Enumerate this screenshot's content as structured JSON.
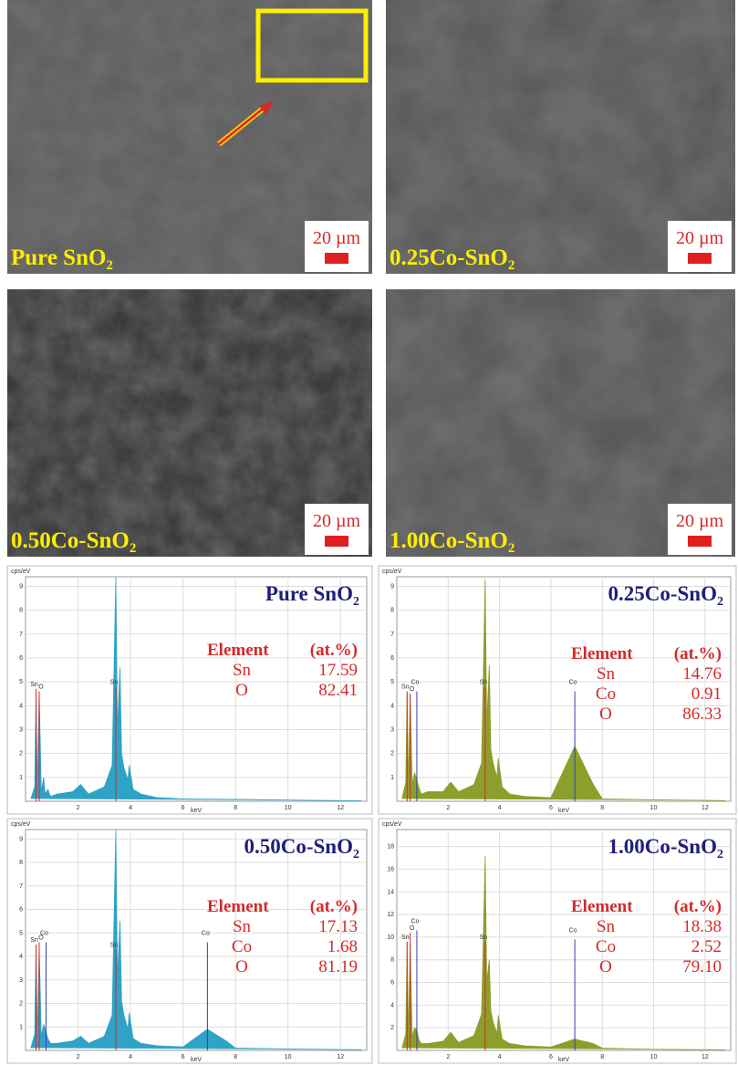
{
  "sem_panels": [
    {
      "label": "Pure SnO",
      "label_sub": "2",
      "scale_bar": "20 µm"
    },
    {
      "label": "0.25Co-SnO",
      "label_sub": "2",
      "scale_bar": "20 µm"
    },
    {
      "label": "0.50Co-SnO",
      "label_sub": "2",
      "scale_bar": "20 µm"
    },
    {
      "label": "1.00Co-SnO",
      "label_sub": "2",
      "scale_bar": "20 µm"
    }
  ],
  "eds_panels": [
    {
      "type": "area",
      "title": "Pure SnO",
      "title_sub": "2",
      "y_unit": "cps/eV",
      "x_unit": "keV",
      "color": "#2fa3c6",
      "xlim": [
        0,
        13
      ],
      "ylim": [
        0,
        9.4
      ],
      "xticks": [
        2,
        4,
        6,
        8,
        10,
        12
      ],
      "yticks": [
        1,
        2,
        3,
        4,
        5,
        6,
        7,
        8,
        9
      ],
      "x": [
        0.2,
        0.35,
        0.4,
        0.45,
        0.52,
        0.6,
        0.69,
        0.75,
        0.85,
        0.95,
        1.2,
        1.8,
        2.1,
        2.4,
        3.0,
        3.3,
        3.44,
        3.5,
        3.6,
        3.66,
        3.75,
        3.9,
        3.95,
        4.1,
        4.4,
        5,
        6,
        8,
        10,
        12.8
      ],
      "y": [
        0.1,
        0.6,
        4.7,
        0.5,
        4.6,
        0.4,
        1.0,
        0.3,
        0.5,
        0.2,
        0.3,
        0.4,
        0.7,
        0.3,
        0.6,
        1.5,
        9.4,
        3.0,
        5.6,
        2.0,
        1.4,
        0.9,
        1.5,
        0.5,
        0.3,
        0.15,
        0.1,
        0.08,
        0.05,
        0.02
      ],
      "peaks": [
        {
          "text": "Sn",
          "energy": 0.4,
          "height": 4.7,
          "color": "#d42a2a"
        },
        {
          "text": "O",
          "energy": 0.52,
          "height": 4.6,
          "color": "#d42a2a"
        },
        {
          "text": "Sn",
          "energy": 3.44,
          "height": 4.8,
          "color": "#d42a2a"
        }
      ],
      "table": {
        "header": [
          "Element",
          "(at.%)"
        ],
        "rows": [
          [
            "Sn",
            "17.59"
          ],
          [
            "O",
            "82.41"
          ]
        ]
      }
    },
    {
      "type": "area",
      "title": "0.25Co-SnO",
      "title_sub": "2",
      "y_unit": "cps/eV",
      "x_unit": "keV",
      "color": "#8aa02a",
      "xlim": [
        0,
        13
      ],
      "ylim": [
        0,
        9.4
      ],
      "xticks": [
        2,
        4,
        6,
        8,
        10,
        12
      ],
      "yticks": [
        1,
        2,
        3,
        4,
        5,
        6,
        7,
        8,
        9
      ],
      "x": [
        0.2,
        0.35,
        0.4,
        0.45,
        0.52,
        0.6,
        0.69,
        0.78,
        0.85,
        0.95,
        1.2,
        1.8,
        2.1,
        2.4,
        3.0,
        3.3,
        3.44,
        3.5,
        3.6,
        3.66,
        3.75,
        3.9,
        3.95,
        4.1,
        4.4,
        5,
        6,
        6.93,
        7.65,
        8,
        10,
        12.8
      ],
      "y": [
        0.1,
        0.8,
        4.6,
        0.6,
        4.5,
        0.7,
        1.2,
        0.9,
        0.6,
        0.3,
        0.4,
        0.4,
        0.8,
        0.4,
        0.7,
        1.6,
        9.3,
        3.2,
        5.7,
        2.2,
        1.6,
        1.0,
        1.8,
        0.6,
        0.3,
        0.2,
        0.15,
        2.3,
        0.7,
        0.1,
        0.06,
        0.03
      ],
      "peaks": [
        {
          "text": "Sn",
          "energy": 0.4,
          "height": 4.6,
          "color": "#d42a2a"
        },
        {
          "text": "O",
          "energy": 0.52,
          "height": 4.5,
          "color": "#d42a2a"
        },
        {
          "text": "Co",
          "energy": 0.78,
          "height": 4.6,
          "color": "#3040b0"
        },
        {
          "text": "Sn",
          "energy": 3.44,
          "height": 4.8,
          "color": "#d42a2a"
        },
        {
          "text": "Co",
          "energy": 6.93,
          "height": 4.6,
          "color": "#3040b0"
        }
      ],
      "table": {
        "header": [
          "Element",
          "(at.%)"
        ],
        "rows": [
          [
            "Sn",
            "14.76"
          ],
          [
            "Co",
            "0.91"
          ],
          [
            "O",
            "86.33"
          ]
        ]
      }
    },
    {
      "type": "area",
      "title": "0.50Co-SnO",
      "title_sub": "2",
      "y_unit": "cps/eV",
      "x_unit": "keV",
      "color": "#2fa3c6",
      "xlim": [
        0,
        13
      ],
      "ylim": [
        0,
        9.4
      ],
      "xticks": [
        2,
        4,
        6,
        8,
        10,
        12
      ],
      "yticks": [
        1,
        2,
        3,
        4,
        5,
        6,
        7,
        8,
        9
      ],
      "x": [
        0.2,
        0.35,
        0.4,
        0.45,
        0.52,
        0.6,
        0.69,
        0.78,
        0.85,
        0.95,
        1.2,
        1.8,
        2.1,
        2.4,
        3.0,
        3.3,
        3.44,
        3.5,
        3.6,
        3.66,
        3.75,
        3.9,
        3.95,
        4.1,
        4.4,
        5,
        6,
        6.93,
        7.65,
        8,
        10,
        12.8
      ],
      "y": [
        0.1,
        0.7,
        4.5,
        0.5,
        4.4,
        0.6,
        1.1,
        0.8,
        0.5,
        0.3,
        0.3,
        0.4,
        0.6,
        0.3,
        0.6,
        1.5,
        9.4,
        3.1,
        5.5,
        2.1,
        1.5,
        0.9,
        1.6,
        0.5,
        0.3,
        0.2,
        0.15,
        0.9,
        0.4,
        0.1,
        0.06,
        0.03
      ],
      "peaks": [
        {
          "text": "Sn",
          "energy": 0.4,
          "height": 4.5,
          "color": "#d42a2a"
        },
        {
          "text": "O",
          "energy": 0.52,
          "height": 4.6,
          "color": "#d42a2a"
        },
        {
          "text": "Co",
          "energy": 0.78,
          "height": 4.6,
          "color": "#3040b0"
        },
        {
          "text": "Sn",
          "energy": 3.44,
          "height": 4.3,
          "color": "#d42a2a"
        },
        {
          "text": "Co",
          "energy": 6.93,
          "height": 4.6,
          "color": "#3040b0"
        }
      ],
      "table": {
        "header": [
          "Element",
          "(at.%)"
        ],
        "rows": [
          [
            "Sn",
            "17.13"
          ],
          [
            "Co",
            "1.68"
          ],
          [
            "O",
            "81.19"
          ]
        ]
      }
    },
    {
      "type": "area",
      "title": "1.00Co-SnO",
      "title_sub": "2",
      "y_unit": "cps/eV",
      "x_unit": "keV",
      "color": "#8aa02a",
      "xlim": [
        0,
        13
      ],
      "ylim": [
        0,
        19.5
      ],
      "xticks": [
        2,
        4,
        6,
        8,
        10,
        12
      ],
      "yticks": [
        2,
        4,
        6,
        8,
        10,
        12,
        14,
        16,
        18
      ],
      "x": [
        0.2,
        0.35,
        0.4,
        0.45,
        0.52,
        0.6,
        0.69,
        0.78,
        0.85,
        0.95,
        1.2,
        1.8,
        2.1,
        2.4,
        3.0,
        3.3,
        3.44,
        3.5,
        3.6,
        3.66,
        3.75,
        3.9,
        3.95,
        4.1,
        4.4,
        5,
        6,
        6.93,
        7.65,
        8,
        10,
        12.8
      ],
      "y": [
        0.2,
        1.5,
        9.6,
        1.0,
        9.5,
        1.2,
        2.0,
        1.8,
        1.0,
        0.6,
        0.6,
        0.8,
        1.6,
        0.7,
        1.3,
        3.2,
        17.2,
        6.0,
        8.0,
        3.5,
        2.5,
        1.5,
        3.1,
        1.0,
        0.6,
        0.4,
        0.3,
        1.0,
        0.6,
        0.2,
        0.1,
        0.05
      ],
      "peaks": [
        {
          "text": "Sn",
          "energy": 0.4,
          "height": 9.6,
          "color": "#d42a2a"
        },
        {
          "text": "O",
          "energy": 0.52,
          "height": 10.4,
          "color": "#d42a2a"
        },
        {
          "text": "Co",
          "energy": 0.78,
          "height": 10.6,
          "color": "#3040b0"
        },
        {
          "text": "Sn",
          "energy": 3.44,
          "height": 9.6,
          "color": "#d42a2a"
        },
        {
          "text": "Co",
          "energy": 6.93,
          "height": 9.8,
          "color": "#3040b0"
        }
      ],
      "table": {
        "header": [
          "Element",
          "(at.%)"
        ],
        "rows": [
          [
            "Sn",
            "18.38"
          ],
          [
            "Co",
            "2.52"
          ],
          [
            "O",
            "79.10"
          ]
        ]
      }
    }
  ]
}
